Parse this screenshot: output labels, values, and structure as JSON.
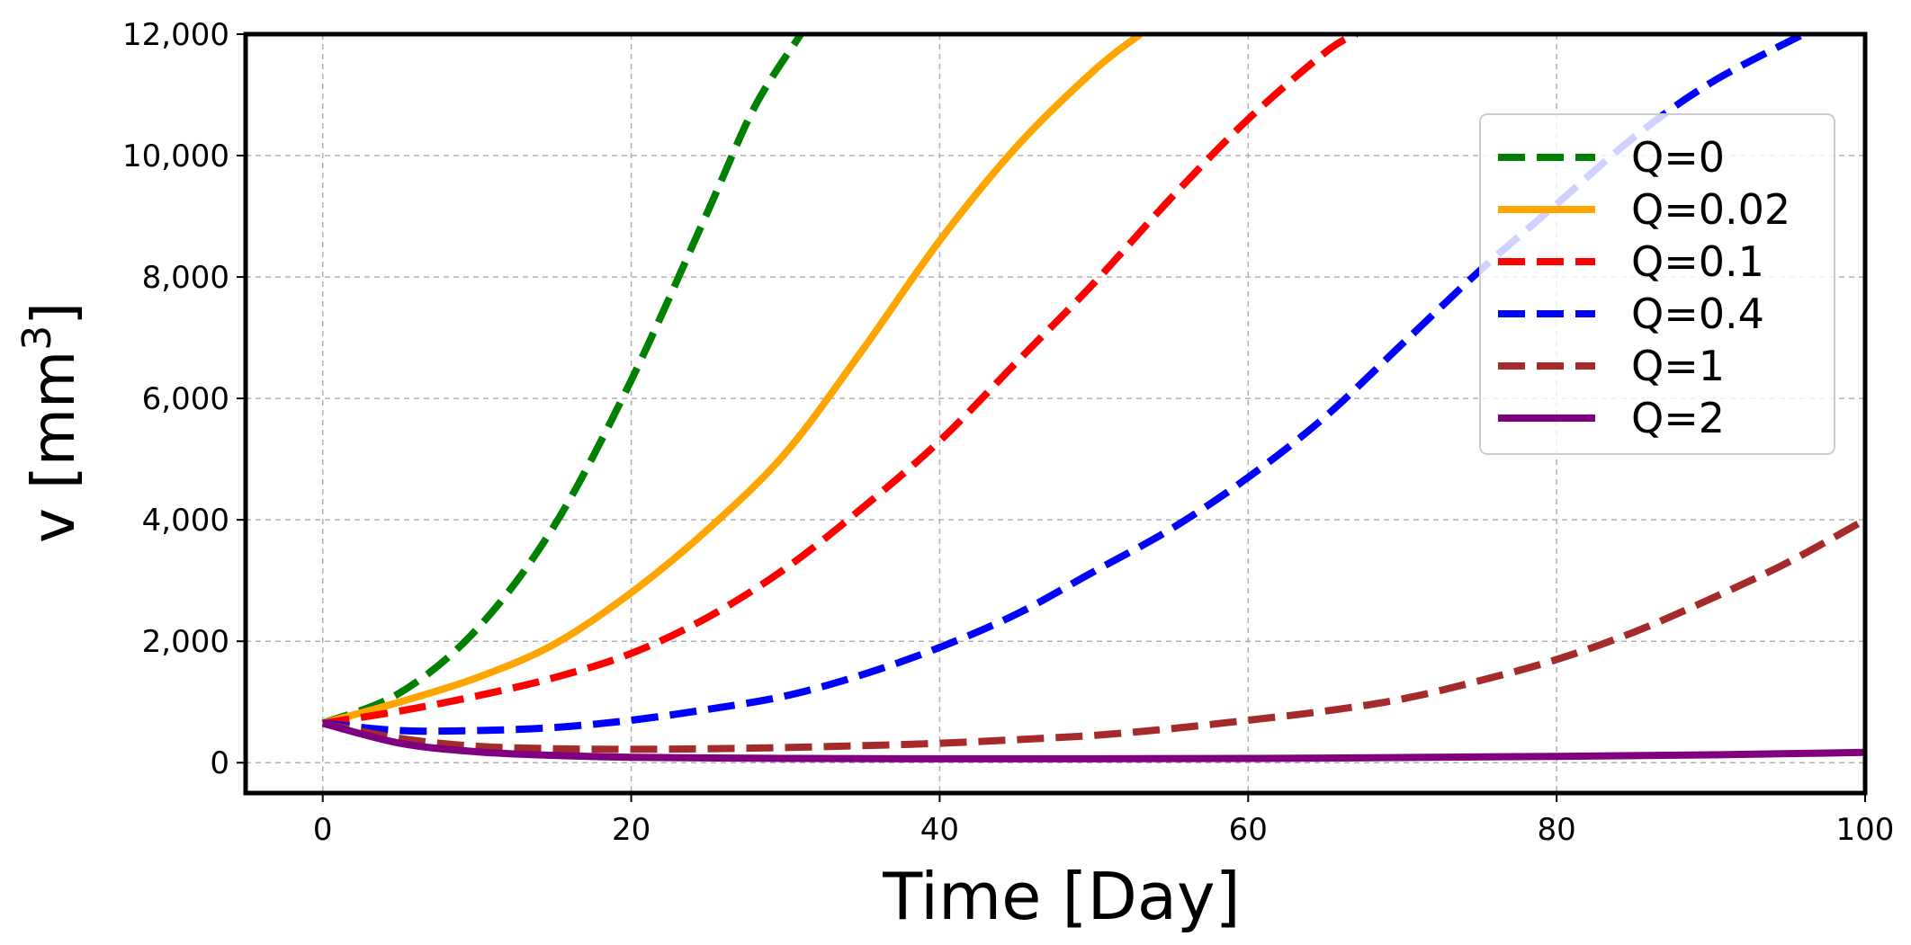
{
  "chart_data": {
    "type": "line",
    "title": "",
    "xlabel": "Time [Day]",
    "ylabel_main": "v [mm",
    "ylabel_sup": "3",
    "ylabel_close": "]",
    "xlim": [
      -5,
      100
    ],
    "ylim": [
      -500,
      12000
    ],
    "xticks": [
      0,
      20,
      40,
      60,
      80,
      100
    ],
    "xtick_labels": [
      "0",
      "20",
      "40",
      "60",
      "80",
      "100"
    ],
    "yticks": [
      0,
      2000,
      4000,
      6000,
      8000,
      10000,
      12000
    ],
    "ytick_labels": [
      "0",
      "2,000",
      "4,000",
      "6,000",
      "8,000",
      "10,000",
      "12,000"
    ],
    "grid": true,
    "legend_position": "upper right",
    "series": [
      {
        "name": "Q=0",
        "color": "#008000",
        "style": "dashed",
        "x": [
          0,
          5,
          10,
          15,
          20,
          25,
          28,
          31
        ],
        "y": [
          650,
          1150,
          2200,
          3900,
          6300,
          9100,
          10800,
          12000
        ]
      },
      {
        "name": "Q=0.02",
        "color": "#FFA500",
        "style": "solid",
        "x": [
          0,
          5,
          10,
          15,
          20,
          25,
          30,
          35,
          40,
          45,
          50,
          53
        ],
        "y": [
          650,
          1000,
          1400,
          1950,
          2800,
          3850,
          5100,
          6800,
          8600,
          10150,
          11400,
          12000
        ]
      },
      {
        "name": "Q=0.1",
        "color": "#FF0000",
        "style": "dashed",
        "x": [
          0,
          5,
          10,
          15,
          20,
          25,
          30,
          35,
          40,
          45,
          50,
          55,
          60,
          65,
          67
        ],
        "y": [
          650,
          850,
          1100,
          1400,
          1800,
          2400,
          3200,
          4200,
          5300,
          6600,
          7900,
          9300,
          10600,
          11700,
          12000
        ]
      },
      {
        "name": "Q=0.4",
        "color": "#0000FF",
        "style": "dashed",
        "x": [
          0,
          5,
          10,
          15,
          20,
          25,
          30,
          35,
          40,
          45,
          50,
          55,
          60,
          65,
          70,
          75,
          80,
          85,
          90,
          96
        ],
        "y": [
          650,
          530,
          530,
          580,
          700,
          880,
          1100,
          1450,
          1900,
          2450,
          3150,
          3850,
          4700,
          5700,
          6900,
          8100,
          9200,
          10300,
          11200,
          12000
        ]
      },
      {
        "name": "Q=1",
        "color": "#A52A2A",
        "style": "dashed",
        "x": [
          0,
          5,
          10,
          15,
          20,
          25,
          30,
          35,
          40,
          45,
          50,
          55,
          60,
          65,
          70,
          75,
          80,
          85,
          90,
          95,
          100
        ],
        "y": [
          650,
          400,
          270,
          230,
          220,
          230,
          250,
          280,
          320,
          380,
          450,
          560,
          700,
          850,
          1050,
          1350,
          1700,
          2150,
          2700,
          3300,
          4000
        ]
      },
      {
        "name": "Q=2",
        "color": "#800080",
        "style": "solid",
        "x": [
          0,
          5,
          10,
          15,
          20,
          30,
          40,
          50,
          60,
          70,
          80,
          90,
          100
        ],
        "y": [
          650,
          320,
          180,
          120,
          90,
          70,
          65,
          65,
          70,
          85,
          105,
          130,
          170
        ]
      }
    ]
  }
}
